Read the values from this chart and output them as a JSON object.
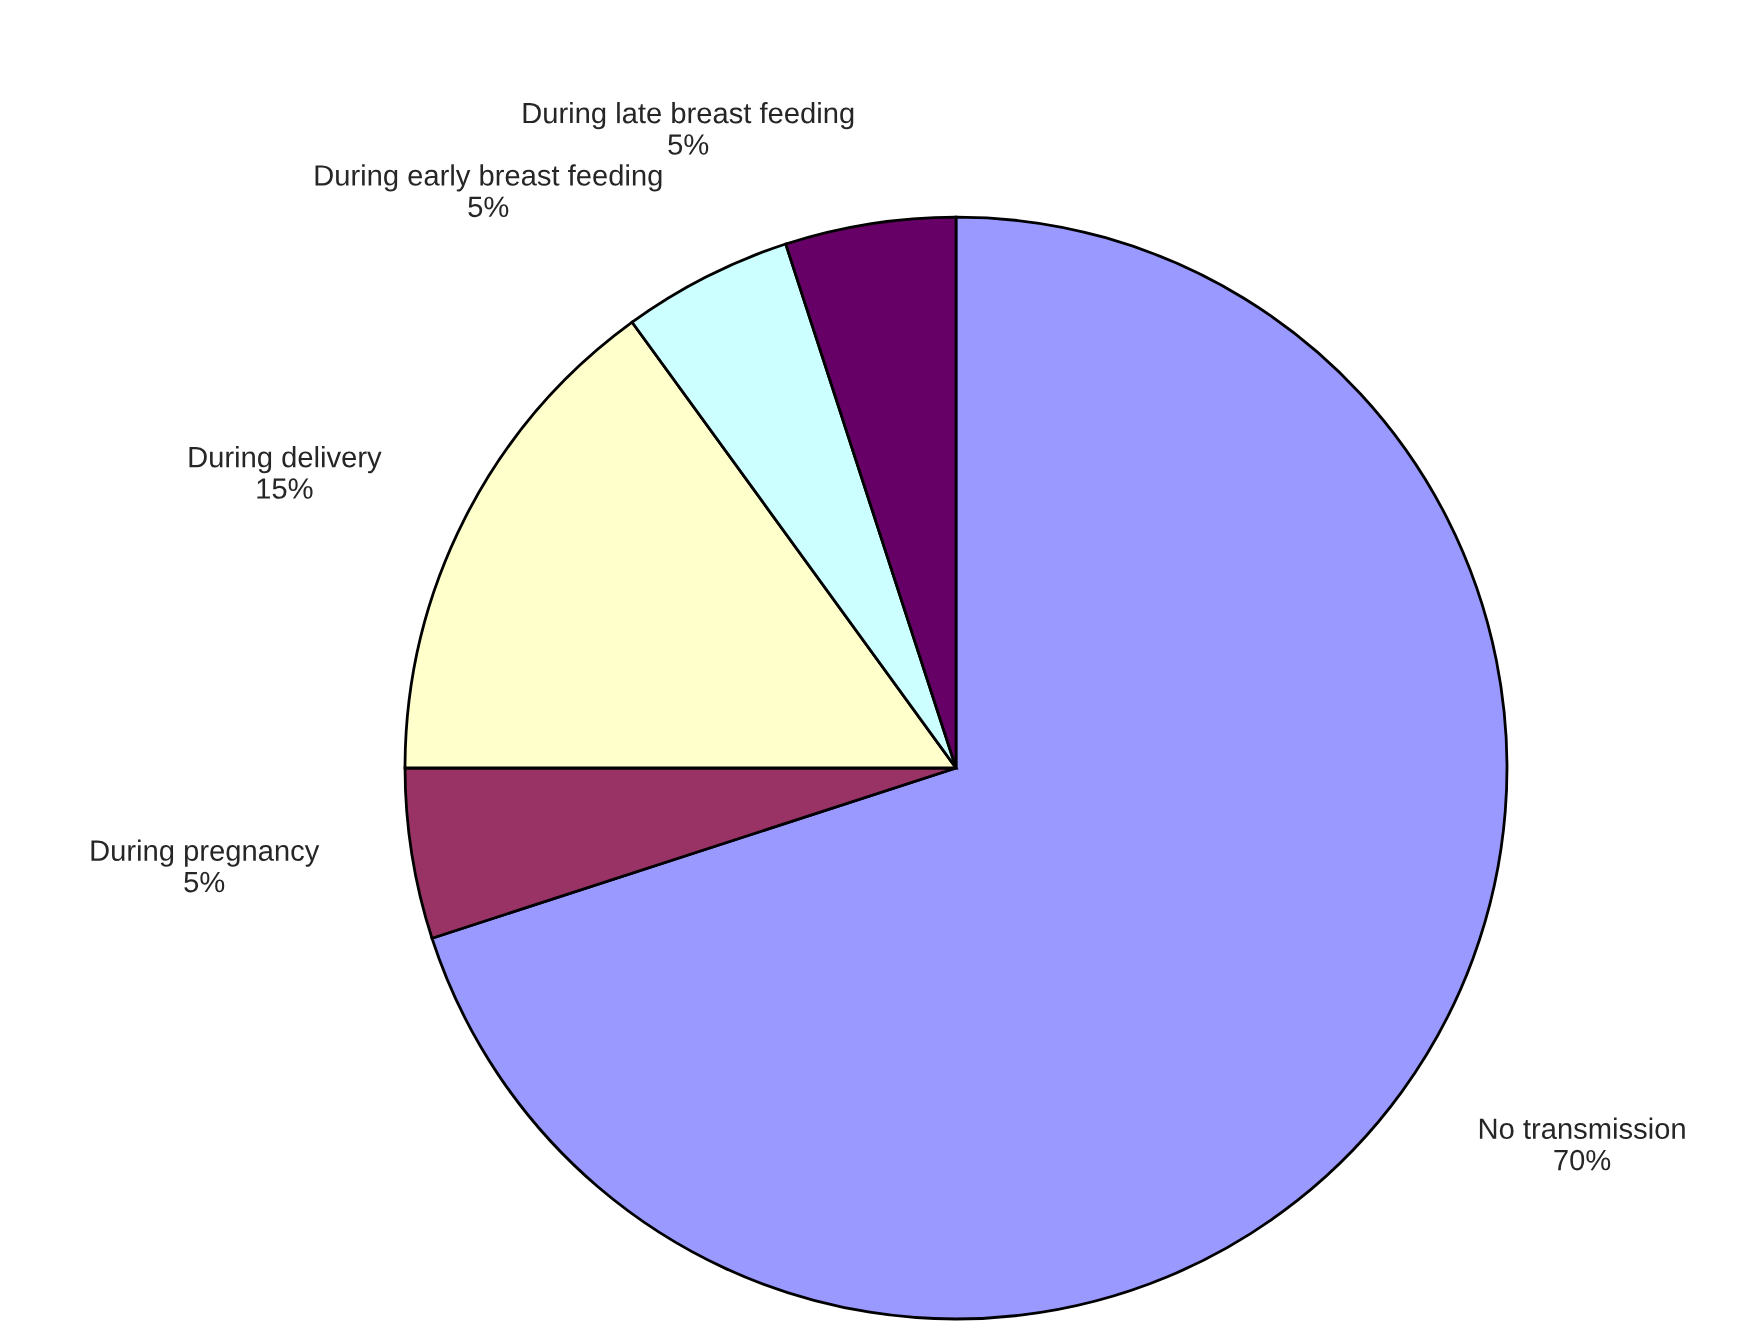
{
  "chart_data": {
    "type": "pie",
    "categories": [
      "No transmission",
      "During pregnancy",
      "During delivery",
      "During early breast feeding",
      "During late breast feeding"
    ],
    "values": [
      70,
      5,
      15,
      5,
      5
    ],
    "value_labels": [
      "70%",
      "5%",
      "15%",
      "5%",
      "5%"
    ],
    "colors": [
      "#9999ff",
      "#993366",
      "#ffffcc",
      "#ccffff",
      "#660066"
    ]
  }
}
